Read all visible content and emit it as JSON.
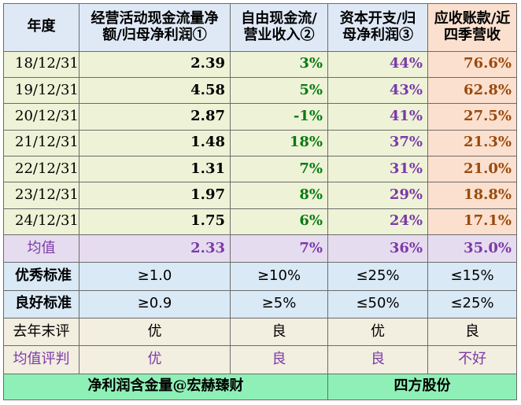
{
  "headers": [
    "年度",
    "经营活动现金流量净额/归母净利润①",
    "自由现金流/营业收入②",
    "资本开支/归母净利润③",
    "应收账款/近四季营收"
  ],
  "rows": [
    {
      "year": "18/12/31",
      "c1": "2.39",
      "c2": "3%",
      "c3": "44%",
      "c4": "76.6%"
    },
    {
      "year": "19/12/31",
      "c1": "4.58",
      "c2": "5%",
      "c3": "43%",
      "c4": "62.8%"
    },
    {
      "year": "20/12/31",
      "c1": "2.87",
      "c2": "-1%",
      "c3": "41%",
      "c4": "27.5%"
    },
    {
      "year": "21/12/31",
      "c1": "1.48",
      "c2": "18%",
      "c3": "37%",
      "c4": "21.3%"
    },
    {
      "year": "22/12/31",
      "c1": "1.31",
      "c2": "7%",
      "c3": "31%",
      "c4": "21.0%"
    },
    {
      "year": "23/12/31",
      "c1": "1.97",
      "c2": "8%",
      "c3": "29%",
      "c4": "18.8%"
    },
    {
      "year": "24/12/31",
      "c1": "1.75",
      "c2": "6%",
      "c3": "24%",
      "c4": "17.1%"
    }
  ],
  "average": {
    "label": "均值",
    "c1": "2.33",
    "c2": "7%",
    "c3": "36%",
    "c4": "35.0%"
  },
  "excellent": {
    "label": "优秀标准",
    "c1": "≥1.0",
    "c2": "≥10%",
    "c3": "≤25%",
    "c4": "≤15%"
  },
  "good": {
    "label": "良好标准",
    "c1": "≥0.9",
    "c2": "≥5%",
    "c3": "≤50%",
    "c4": "≤25%"
  },
  "last_year": {
    "label": "去年末评",
    "c1": "优",
    "c2": "良",
    "c3": "优",
    "c4": "良"
  },
  "avg_judge": {
    "label": "均值评判",
    "c1": "优",
    "c2": "良",
    "c3": "良",
    "c4": "不好"
  },
  "footer": {
    "left": "净利润含金量@宏赫臻财",
    "right": "四方股份"
  },
  "colors": {
    "header_bg": "#dfe9f6",
    "row_bg": "#eef3d7",
    "peach": "#fbe0cf",
    "avg_bg": "#e6dcef",
    "std_bg": "#d9e9f5",
    "eval_bg": "#f2eee0",
    "footer_bg": "#8ef0b6"
  }
}
